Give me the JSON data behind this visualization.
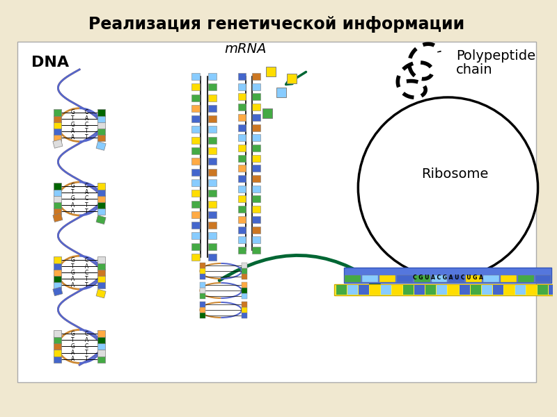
{
  "title": "Реализация генетической информации",
  "title_fontsize": 17,
  "title_fontweight": "bold",
  "bg_color": "#f0e8d0",
  "label_dna": "DNA",
  "label_mrna": "mRNA",
  "label_poly_line1": "Polypeptide",
  "label_poly_line2": "chain",
  "label_ribosome": "Ribosome",
  "dna_base_colors": [
    "#4466cc",
    "#ffdd00",
    "#cc7722",
    "#44aa44",
    "#dddddd",
    "#88ccff",
    "#006600",
    "#ffaa44"
  ],
  "mrna_colors_left": [
    "#ffdd00",
    "#44aa44",
    "#88ccff",
    "#4466cc",
    "#ffaa44",
    "#44aa44",
    "#ffdd00",
    "#88ccff",
    "#4466cc",
    "#ffaa44",
    "#44aa44",
    "#ffdd00",
    "#88ccff",
    "#4466cc",
    "#ffaa44",
    "#44aa44",
    "#ffdd00",
    "#88ccff",
    "#4466cc",
    "#ffaa44"
  ],
  "mrna_colors_right": [
    "#cc7722",
    "#ffdd00",
    "#4466cc",
    "#44aa44",
    "#88ccff",
    "#cc7722",
    "#4466cc",
    "#ffdd00",
    "#44aa44",
    "#88ccff",
    "#cc7722",
    "#4466cc",
    "#ffdd00",
    "#44aa44",
    "#88ccff",
    "#cc7722",
    "#4466cc",
    "#ffdd00",
    "#44aa44",
    "#88ccff"
  ],
  "ribosome_nuc_text": "C G U A C G A U C U G A",
  "ribosome_nuc_colors": [
    "#44aa44",
    "#88ccff",
    "#ffdd00",
    "#4466cc",
    "#44aa44",
    "#88ccff",
    "#4466cc",
    "#ffdd00",
    "#88ccff",
    "#ffdd00",
    "#44aa44",
    "#4466cc"
  ],
  "trna_colors": [
    "#ffdd00",
    "#88ccff",
    "#44aa44",
    "#ffdd00"
  ],
  "arrow_color": "#006633"
}
